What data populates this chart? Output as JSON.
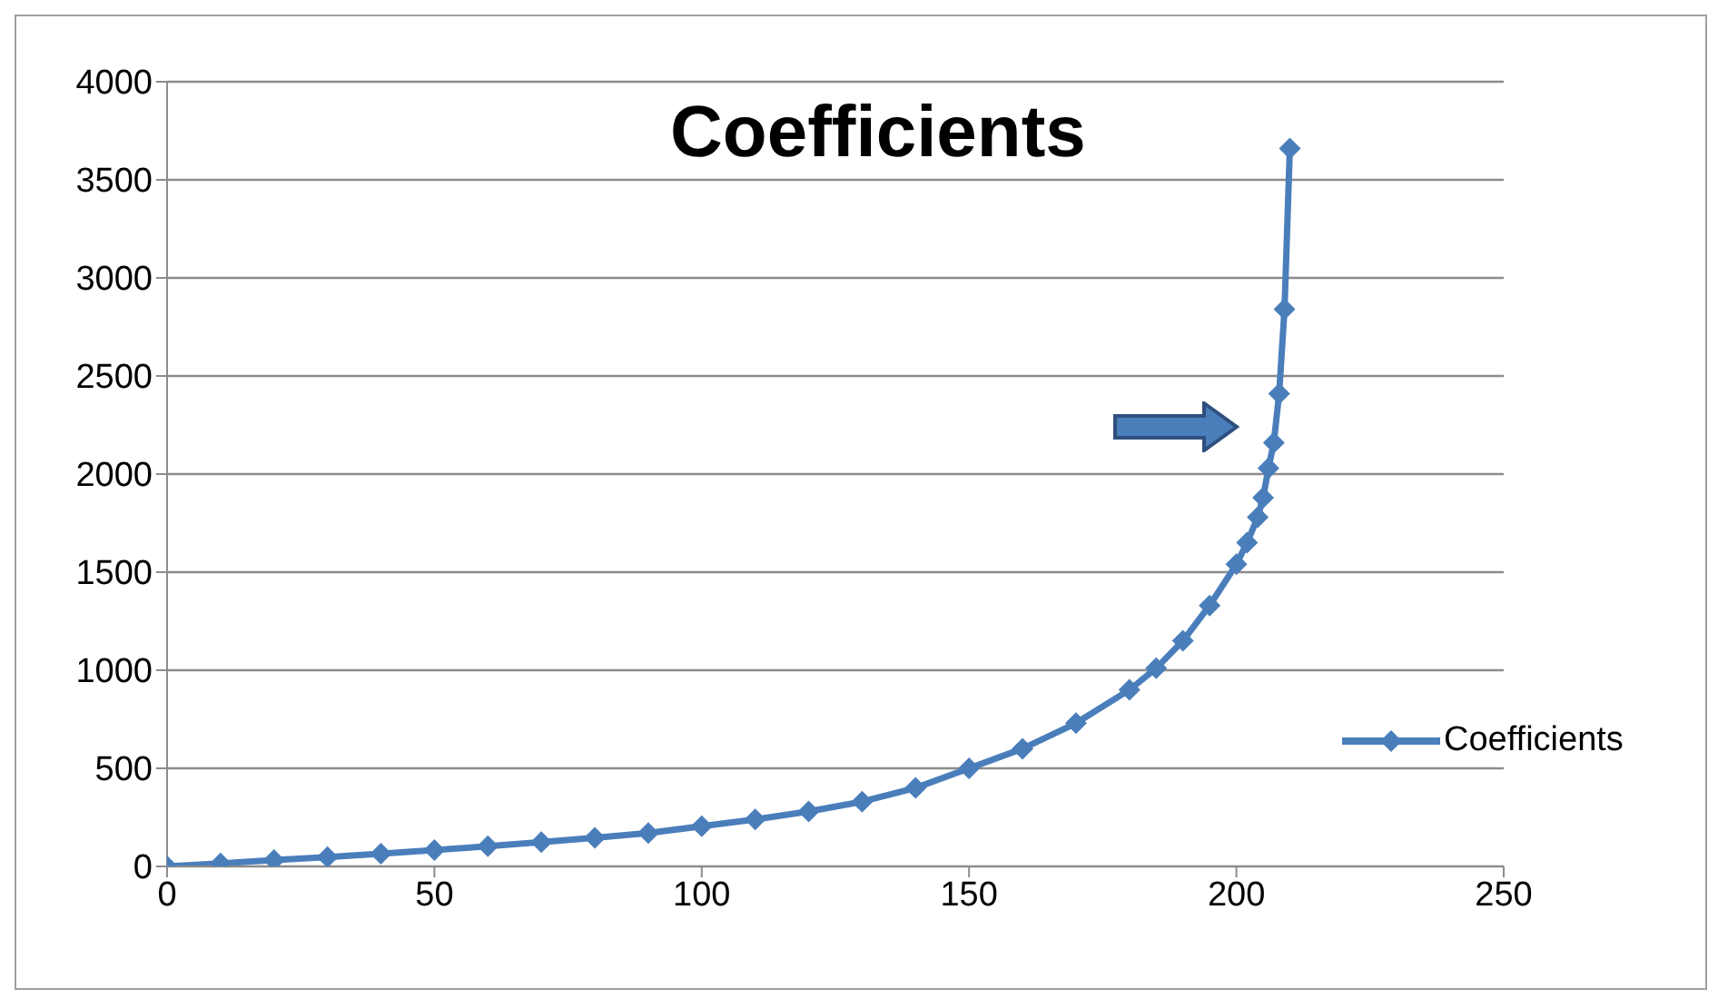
{
  "chart_data": {
    "type": "line",
    "title": "Coefficients",
    "x": [
      0,
      10,
      20,
      30,
      40,
      50,
      60,
      70,
      80,
      90,
      100,
      110,
      120,
      130,
      140,
      150,
      160,
      170,
      180,
      185,
      190,
      195,
      200,
      202,
      204,
      205,
      206,
      207,
      208,
      209,
      210
    ],
    "series": [
      {
        "name": "Coefficients",
        "color": "#4a7ebb",
        "values": [
          0,
          15,
          32,
          48,
          65,
          83,
          103,
          124,
          146,
          170,
          205,
          240,
          280,
          330,
          400,
          500,
          600,
          730,
          900,
          1010,
          1150,
          1330,
          1540,
          1650,
          1780,
          1880,
          2030,
          2160,
          2410,
          2840,
          3660
        ]
      }
    ],
    "xlim": [
      0,
      250
    ],
    "xticks": [
      0,
      50,
      100,
      150,
      200,
      250
    ],
    "ylim": [
      0,
      4000
    ],
    "yticks": [
      0,
      500,
      1000,
      1500,
      2000,
      2500,
      3000,
      3500,
      4000
    ],
    "grid": "y",
    "legend": "right",
    "marker": "diamond",
    "line_style": "solid"
  }
}
